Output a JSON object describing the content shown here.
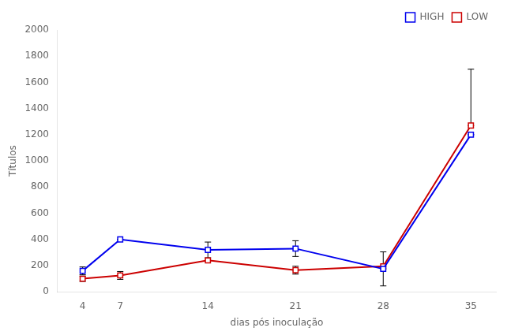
{
  "chart_data": {
    "type": "line",
    "x": [
      4,
      7,
      14,
      21,
      28,
      35
    ],
    "series": [
      {
        "name": "HIGH",
        "color": "#0000EE",
        "marker": "square",
        "values": [
          160,
          400,
          320,
          330,
          175,
          1200
        ],
        "error_lo": [
          30,
          0,
          60,
          60,
          130,
          0
        ],
        "error_hi": [
          30,
          0,
          60,
          60,
          0,
          0
        ]
      },
      {
        "name": "LOW",
        "color": "#CC0000",
        "marker": "square",
        "values": [
          100,
          125,
          240,
          165,
          195,
          1270
        ],
        "error_lo": [
          20,
          30,
          0,
          30,
          0,
          0
        ],
        "error_hi": [
          20,
          30,
          0,
          30,
          110,
          430
        ]
      }
    ],
    "xlabel": "dias pós inoculação",
    "ylabel": "Títulos",
    "xlim": [
      2,
      37
    ],
    "ylim": [
      0,
      2000
    ],
    "xticks": [
      4,
      7,
      14,
      21,
      28,
      35
    ],
    "yticks": [
      0,
      200,
      400,
      600,
      800,
      1000,
      1200,
      1400,
      1600,
      1800,
      2000
    ],
    "grid": false,
    "legend": "upper right"
  }
}
